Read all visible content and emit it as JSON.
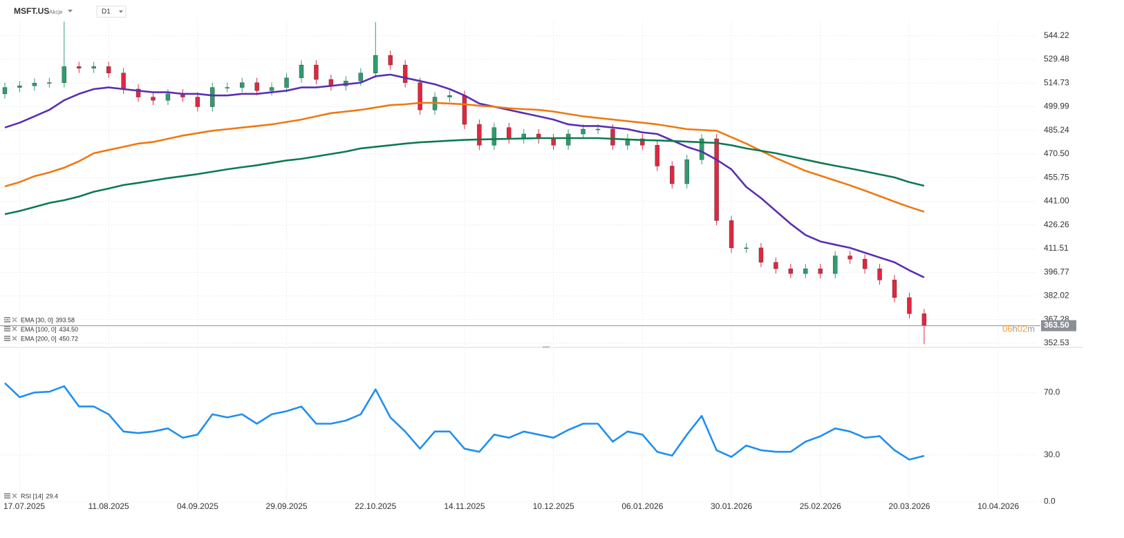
{
  "chart_data": [
    {
      "type": "candlestick",
      "title": "MSFT.US",
      "subtitle": "Akcje",
      "timeframe": "D1",
      "categories": [
        null,
        "17.07.2025",
        null,
        null,
        null,
        null,
        null,
        "11.08.2025",
        null,
        null,
        null,
        null,
        null,
        "04.09.2025",
        null,
        null,
        null,
        null,
        null,
        "29.09.2025",
        null,
        null,
        null,
        null,
        null,
        "22.10.2025",
        null,
        null,
        null,
        null,
        null,
        "14.11.2025",
        null,
        null,
        null,
        null,
        null,
        "10.12.2025",
        null,
        null,
        null,
        null,
        null,
        "06.01.2026",
        null,
        null,
        null,
        null,
        null,
        "30.01.2026",
        null,
        null,
        null,
        null,
        null,
        "25.02.2026",
        null,
        null,
        null,
        null,
        null,
        "20.03.2026",
        null,
        null,
        null,
        null,
        null,
        "10.04.2026"
      ],
      "open": [
        508,
        512,
        513,
        514.7,
        515,
        525,
        524,
        525,
        521,
        511,
        506,
        504,
        508,
        506,
        500,
        512,
        512,
        515,
        510,
        512,
        518,
        526,
        517,
        513,
        516,
        521,
        532,
        526,
        515,
        498,
        506,
        507,
        489,
        476,
        487,
        480,
        483,
        480,
        476,
        483,
        486,
        486,
        476,
        480,
        476,
        463,
        452,
        467,
        480,
        429,
        412,
        412,
        403,
        399,
        396,
        399,
        396,
        407,
        405,
        399,
        392,
        381,
        371,
        null,
        null,
        null,
        null,
        null
      ],
      "high": [
        515,
        516,
        517.7,
        518,
        553,
        528,
        528,
        528,
        524,
        514,
        509,
        511,
        511,
        509,
        515,
        515,
        518,
        518,
        515,
        521,
        529,
        529,
        520,
        519,
        524,
        552.7,
        535,
        529,
        518,
        509,
        510,
        510,
        492,
        490,
        490,
        486,
        486,
        483,
        486,
        489,
        489,
        489,
        483,
        483,
        479,
        466,
        470,
        483,
        483,
        432,
        415,
        415,
        406,
        402,
        402,
        402,
        410,
        410,
        408,
        402,
        395,
        384,
        374,
        null,
        null,
        null,
        null,
        null
      ],
      "low": [
        505,
        509,
        510,
        511.7,
        512,
        521,
        521,
        518,
        508,
        503,
        501,
        501,
        503,
        497,
        497,
        509,
        509,
        507,
        507,
        509,
        515,
        514,
        510,
        510,
        513,
        518,
        523,
        512,
        495,
        495,
        503,
        486,
        473,
        473,
        477,
        477,
        477,
        473,
        473,
        480,
        483,
        473,
        473,
        473,
        460,
        449,
        449,
        464,
        426,
        409,
        409,
        400,
        396,
        393,
        393,
        393,
        393,
        402,
        396,
        389,
        378,
        368,
        352,
        null,
        null,
        null,
        null,
        null
      ],
      "close": [
        512,
        513,
        514.7,
        515,
        525,
        524,
        525,
        521,
        511,
        506,
        504,
        508,
        506,
        500,
        512,
        512,
        515,
        510,
        512,
        518,
        526,
        517,
        513,
        516,
        521,
        532,
        526,
        515,
        498,
        506,
        507,
        489,
        476,
        487,
        480,
        483,
        480,
        476,
        483,
        486,
        486,
        476,
        480,
        476,
        463,
        452,
        467,
        480,
        429,
        412,
        412,
        403,
        399,
        396,
        399,
        396,
        407,
        405,
        399,
        392,
        381,
        371,
        363.5,
        null,
        null,
        null,
        null,
        null
      ],
      "up_color": "#2e9d6e",
      "down_color": "#e1263f",
      "series": [
        {
          "name": "EMA [30, 0]",
          "legend_value": "393.58",
          "color": "#5a2db4",
          "values": [
            487,
            490,
            494,
            498,
            504,
            508,
            511,
            512,
            511,
            510,
            509,
            509,
            508,
            508,
            507,
            507,
            508,
            508,
            509,
            510,
            512,
            512,
            513,
            514,
            515,
            519,
            520,
            518,
            516,
            514,
            511,
            507,
            502,
            500,
            498,
            496,
            494,
            492,
            489,
            488,
            488,
            487,
            486,
            484,
            483,
            479,
            475,
            472,
            467,
            461,
            450,
            443,
            435,
            427,
            420,
            416,
            414,
            412,
            409,
            406,
            403,
            398,
            393.58,
            null,
            null,
            null,
            null,
            null
          ]
        },
        {
          "name": "EMA [100, 0]",
          "legend_value": "434.50",
          "color": "#f0780f",
          "values": [
            450.3,
            453,
            456.7,
            459,
            462,
            466,
            471,
            473,
            475,
            477,
            478,
            480,
            482,
            483.5,
            485,
            486,
            487,
            488,
            489,
            490.5,
            492,
            494,
            496,
            497,
            498,
            499.5,
            501,
            501.5,
            502.4,
            502.4,
            502,
            501.5,
            500.6,
            500,
            499,
            498.5,
            498,
            497,
            495.5,
            494,
            493,
            492,
            491,
            490,
            489,
            487.5,
            486,
            485.5,
            485,
            481,
            477,
            472.5,
            468,
            464,
            460,
            457,
            454,
            451,
            447.7,
            444.3,
            440.8,
            437.5,
            434.5,
            null,
            null,
            null,
            null,
            null
          ]
        },
        {
          "name": "EMA [200, 0]",
          "legend_value": "450.72",
          "color": "#0c7a50",
          "values": [
            433,
            435,
            437.5,
            440,
            441.7,
            444,
            447,
            449,
            451.2,
            452.5,
            454,
            455.5,
            456.7,
            458,
            459.5,
            461,
            462.3,
            463.5,
            465,
            466.5,
            467.5,
            469,
            470.5,
            472,
            474,
            475,
            476,
            477,
            477.8,
            478.3,
            478.8,
            479.3,
            479.6,
            479.8,
            480,
            480.2,
            480.4,
            480.4,
            480.4,
            480.4,
            480.4,
            480,
            479.6,
            479.2,
            479,
            478.6,
            478.2,
            477.8,
            477.4,
            476,
            474,
            472.5,
            471,
            469,
            467,
            465,
            463.2,
            461.5,
            459.7,
            457.8,
            455.9,
            453,
            450.72,
            null,
            null,
            null,
            null,
            null
          ]
        }
      ],
      "ylim": [
        350.4,
        553.6
      ],
      "yticks": [
        352.53,
        367.28,
        382.02,
        396.77,
        411.51,
        426.26,
        {
          "value": 441.0,
          "label": "441.00"
        },
        455.75,
        {
          "value": 470.5,
          "label": "470.50"
        },
        485.24,
        499.99,
        514.73,
        529.48,
        544.22
      ],
      "price_label": "363.50",
      "countdown": [
        "06",
        "h",
        "02",
        "m"
      ],
      "grid": true
    },
    {
      "type": "line",
      "series": [
        {
          "name": "RSI [14]",
          "color": "#1e8ff0",
          "values": [
            76,
            67,
            70,
            70.5,
            74,
            61,
            61,
            56,
            45,
            44,
            45,
            47,
            41,
            43,
            56,
            54,
            56,
            50,
            56,
            58,
            61,
            50,
            50,
            52,
            56,
            72,
            54,
            45,
            34,
            45,
            45,
            34,
            32,
            43,
            41,
            45,
            43,
            41,
            46,
            50,
            50,
            38.5,
            45,
            43,
            32,
            29.5,
            43,
            55,
            33,
            28.7,
            36,
            33,
            32,
            32,
            38.5,
            42,
            47,
            45,
            41,
            42,
            33,
            27,
            29.4,
            null,
            null,
            null,
            null,
            null
          ]
        }
      ],
      "ylim": [
        0,
        98
      ],
      "yticks": [
        {
          "value": 0,
          "label": "0.0"
        },
        {
          "value": 30,
          "label": "30.0"
        },
        {
          "value": 70,
          "label": "70.0"
        }
      ],
      "grid": true
    }
  ]
}
